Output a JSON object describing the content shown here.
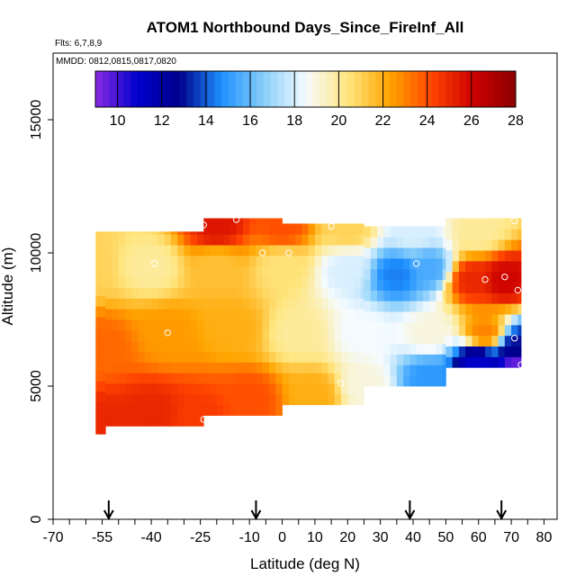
{
  "chart_data": {
    "type": "heatmap",
    "title": "ATOM1 Northbound Days_Since_FireInf_All",
    "flights_label": "Flts: 6,7,8,9",
    "dates_label": "MMDD: 0812,0815,0817,0820",
    "xlabel": "Latitude (deg N)",
    "ylabel": "Altitude (m)",
    "xlim": [
      -70,
      84
    ],
    "ylim": [
      0,
      17500
    ],
    "x_ticks": [
      -70,
      -55,
      -40,
      -25,
      -10,
      0,
      10,
      20,
      30,
      40,
      50,
      60,
      70,
      80
    ],
    "x_tick_labels": [
      "-70",
      "-55",
      "-40",
      "-25",
      "-10",
      "0",
      "10",
      "20",
      "30",
      "40",
      "50",
      "60",
      "70",
      "80"
    ],
    "y_ticks": [
      0,
      5000,
      10000,
      15000
    ],
    "y_tick_labels": [
      "0",
      "5000",
      "10000",
      "15000"
    ],
    "colorbar": {
      "min": 9,
      "max": 28,
      "ticks": [
        10,
        12,
        14,
        16,
        18,
        20,
        22,
        24,
        26,
        28
      ],
      "tick_labels": [
        "10",
        "12",
        "14",
        "16",
        "18",
        "20",
        "22",
        "24",
        "26",
        "28"
      ],
      "colors": [
        "#8a2be2",
        "#0000cd",
        "#00008b",
        "#1e90ff",
        "#87cefa",
        "#f5fbff",
        "#ffe680",
        "#ffa500",
        "#ff4500",
        "#cc0000",
        "#8b0000"
      ]
    },
    "profile_arrows_lat": [
      -53,
      -8,
      39,
      67
    ],
    "columns": [
      {
        "lat_from": -57,
        "lat_to": -54,
        "alt_low": 3200,
        "alt_high": 10800
      },
      {
        "lat_from": -54,
        "lat_to": -24,
        "alt_low": 3500,
        "alt_high": 10800
      },
      {
        "lat_from": -24,
        "lat_to": 0,
        "alt_low": 3900,
        "alt_high": 11300
      },
      {
        "lat_from": 0,
        "lat_to": 25,
        "alt_low": 4300,
        "alt_high": 11100
      },
      {
        "lat_from": 25,
        "lat_to": 50,
        "alt_low": 5000,
        "alt_high": 11000
      },
      {
        "lat_from": 50,
        "lat_to": 73,
        "alt_low": 5700,
        "alt_high": 11300
      }
    ],
    "values": [
      {
        "lat": -55,
        "alt": 3500,
        "days": 25
      },
      {
        "lat": -40,
        "alt": 4000,
        "days": 25
      },
      {
        "lat": -25,
        "alt": 3800,
        "days": 24.5
      },
      {
        "lat": -10,
        "alt": 4500,
        "days": 24
      },
      {
        "lat": 10,
        "alt": 4700,
        "days": 22
      },
      {
        "lat": 25,
        "alt": 5000,
        "days": 19
      },
      {
        "lat": 45,
        "alt": 5300,
        "days": 15
      },
      {
        "lat": 60,
        "alt": 5900,
        "days": 11
      },
      {
        "lat": -55,
        "alt": 6500,
        "days": 23.5
      },
      {
        "lat": -35,
        "alt": 7000,
        "days": 22.5
      },
      {
        "lat": -15,
        "alt": 7200,
        "days": 22
      },
      {
        "lat": 5,
        "alt": 7000,
        "days": 20
      },
      {
        "lat": 25,
        "alt": 7000,
        "days": 18.5
      },
      {
        "lat": 45,
        "alt": 7000,
        "days": 19
      },
      {
        "lat": 62,
        "alt": 7000,
        "days": 23
      },
      {
        "lat": -60,
        "alt": 9500,
        "days": 21
      },
      {
        "lat": -40,
        "alt": 9500,
        "days": 20
      },
      {
        "lat": -20,
        "alt": 9500,
        "days": 21.5
      },
      {
        "lat": 0,
        "alt": 9500,
        "days": 20.5
      },
      {
        "lat": 20,
        "alt": 9400,
        "days": 18
      },
      {
        "lat": 35,
        "alt": 9200,
        "days": 14.5
      },
      {
        "lat": 45,
        "alt": 9400,
        "days": 15.5
      },
      {
        "lat": 58,
        "alt": 9000,
        "days": 25
      },
      {
        "lat": 68,
        "alt": 9000,
        "days": 26
      },
      {
        "lat": -20,
        "alt": 11000,
        "days": 25.5
      },
      {
        "lat": 0,
        "alt": 11000,
        "days": 24
      },
      {
        "lat": 20,
        "alt": 10900,
        "days": 21
      },
      {
        "lat": 40,
        "alt": 10800,
        "days": 18
      },
      {
        "lat": 60,
        "alt": 10800,
        "days": 20
      },
      {
        "lat": 72,
        "alt": 6500,
        "days": 13
      },
      {
        "lat": 72,
        "alt": 5800,
        "days": 9.5
      }
    ],
    "sample_points": [
      {
        "lat": -24,
        "alt": 11050
      },
      {
        "lat": -14,
        "alt": 11250
      },
      {
        "lat": 15,
        "alt": 11000
      },
      {
        "lat": 71,
        "alt": 11200
      },
      {
        "lat": -6,
        "alt": 10000
      },
      {
        "lat": 2,
        "alt": 10000
      },
      {
        "lat": -39,
        "alt": 9600
      },
      {
        "lat": 41,
        "alt": 9600
      },
      {
        "lat": 62,
        "alt": 9000
      },
      {
        "lat": 68,
        "alt": 9100
      },
      {
        "lat": 72,
        "alt": 8600
      },
      {
        "lat": -35,
        "alt": 7000
      },
      {
        "lat": 71,
        "alt": 6800
      },
      {
        "lat": 73,
        "alt": 5800
      },
      {
        "lat": 18,
        "alt": 5100
      },
      {
        "lat": -24,
        "alt": 3750
      }
    ]
  }
}
